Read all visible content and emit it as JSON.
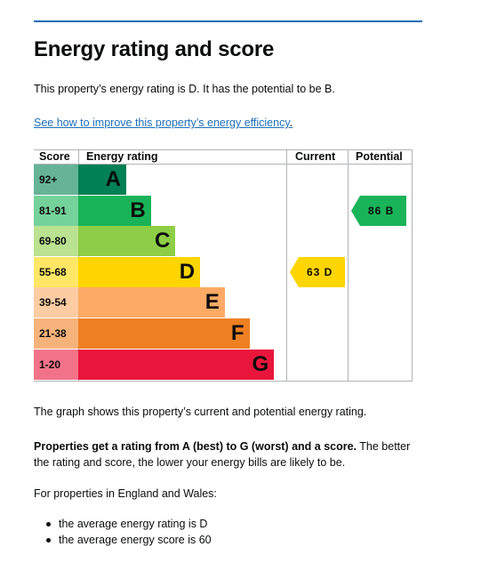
{
  "page": {
    "title": "Energy rating and score",
    "intro": "This property’s energy rating is D. It has the potential to be B.",
    "improve_link": "See how to improve this property’s energy efficiency",
    "improve_link_suffix": "."
  },
  "colors": {
    "link": "#1d70b8",
    "rule": "#1d70b8",
    "text": "#0b0c0c"
  },
  "chart_data": {
    "type": "table",
    "headers": {
      "score": "Score",
      "rating": "Energy rating",
      "current": "Current",
      "potential": "Potential"
    },
    "bands": [
      {
        "range": "92+",
        "letter": "A",
        "color": "#008054",
        "score_bg": "#66b398"
      },
      {
        "range": "81-91",
        "letter": "B",
        "color": "#19b459",
        "score_bg": "#75d29b"
      },
      {
        "range": "69-80",
        "letter": "C",
        "color": "#8dce46",
        "score_bg": "#bbe290"
      },
      {
        "range": "55-68",
        "letter": "D",
        "color": "#ffd500",
        "score_bg": "#ffe666"
      },
      {
        "range": "39-54",
        "letter": "E",
        "color": "#fcaa65",
        "score_bg": "#fdcca3"
      },
      {
        "range": "21-38",
        "letter": "F",
        "color": "#ef8023",
        "score_bg": "#f5b37b"
      },
      {
        "range": "1-20",
        "letter": "G",
        "color": "#e9153b",
        "score_bg": "#f27389"
      }
    ],
    "current": {
      "score": 63,
      "letter": "D",
      "label": "63  D",
      "color": "#ffd500",
      "text_color": "#0b0c0c"
    },
    "potential": {
      "score": 86,
      "letter": "B",
      "label": "86  B",
      "color": "#19b459",
      "text_color": "#0b0c0c"
    }
  },
  "body": {
    "graph_note": "The graph shows this property’s current and potential energy rating.",
    "bold_sentence": "Properties get a rating from A (best) to G (worst) and a score.",
    "rest_sentence": " The better the rating and score, the lower your energy bills are likely to be.",
    "region_intro": "For properties in England and Wales:",
    "bullets": [
      "the average energy rating is D",
      "the average energy score is 60"
    ]
  }
}
